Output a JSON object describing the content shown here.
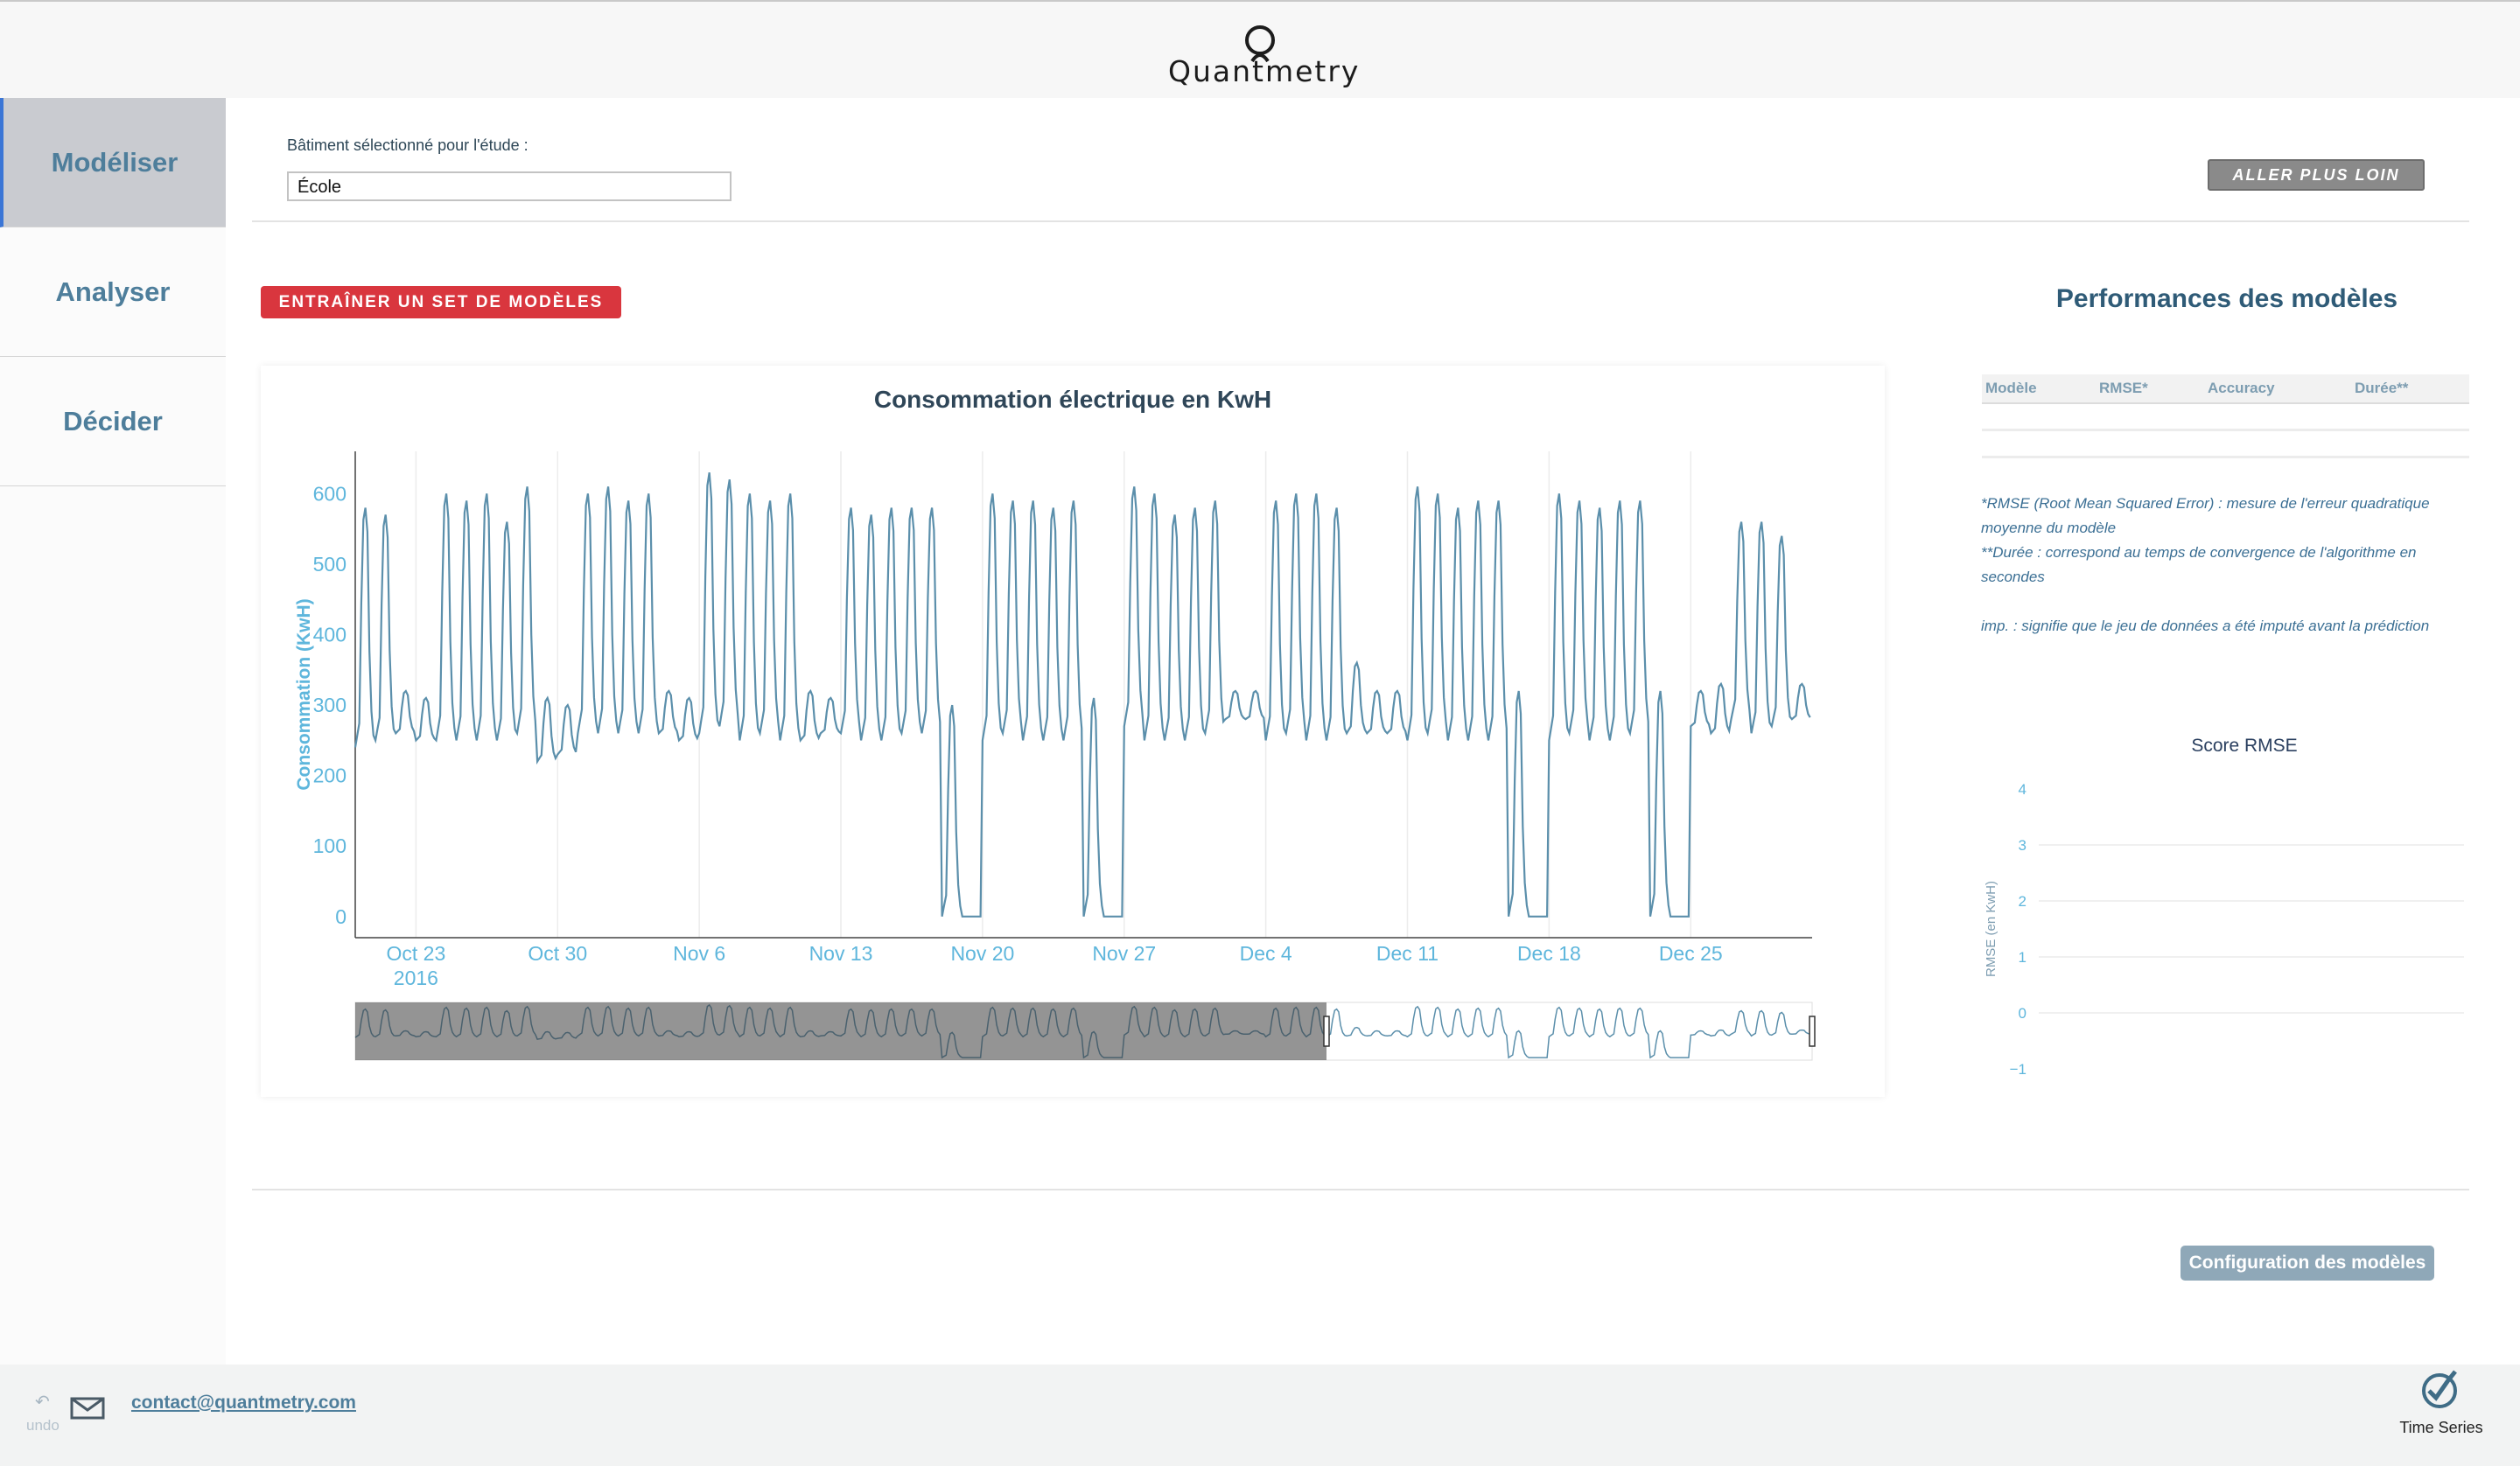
{
  "brand": {
    "name": "Quantmetry"
  },
  "sidebar": {
    "items": [
      {
        "label": "Modéliser",
        "active": true
      },
      {
        "label": "Analyser",
        "active": false
      },
      {
        "label": "Décider",
        "active": false
      }
    ]
  },
  "building": {
    "label": "Bâtiment sélectionné pour l'étude :",
    "value": "École"
  },
  "buttons": {
    "aller_plus_loin": "ALLER PLUS LOIN",
    "train": "ENTRAÎNER UN SET DE MODÈLES",
    "config": "Configuration des modèles"
  },
  "chart_data": {
    "type": "line",
    "title": "Consommation électrique en KwH",
    "ylabel": "Consommation (KwH)",
    "xlabel": "",
    "ylim": [
      -30,
      660
    ],
    "y_ticks": [
      0,
      100,
      200,
      300,
      400,
      500,
      600
    ],
    "x_tick_labels": [
      "Oct 23",
      "Oct 30",
      "Nov 6",
      "Nov 13",
      "Nov 20",
      "Nov 27",
      "Dec 4",
      "Dec 11",
      "Dec 18",
      "Dec 25"
    ],
    "x_tick_sublabel": "2016",
    "x_range": [
      "2016-10-20",
      "2016-12-31"
    ],
    "grid": true,
    "series": [
      {
        "color": "#5b8fab",
        "x": [
          "2016-10-20",
          "2016-10-21",
          "2016-10-22",
          "2016-10-23",
          "2016-10-24",
          "2016-10-25",
          "2016-10-26",
          "2016-10-27",
          "2016-10-28",
          "2016-10-29",
          "2016-10-30",
          "2016-10-31",
          "2016-11-01",
          "2016-11-02",
          "2016-11-03",
          "2016-11-04",
          "2016-11-05",
          "2016-11-06",
          "2016-11-07",
          "2016-11-08",
          "2016-11-09",
          "2016-11-10",
          "2016-11-11",
          "2016-11-12",
          "2016-11-13",
          "2016-11-14",
          "2016-11-15",
          "2016-11-16",
          "2016-11-17",
          "2016-11-18",
          "2016-11-19",
          "2016-11-20",
          "2016-11-21",
          "2016-11-22",
          "2016-11-23",
          "2016-11-24",
          "2016-11-25",
          "2016-11-26",
          "2016-11-27",
          "2016-11-28",
          "2016-11-29",
          "2016-11-30",
          "2016-12-01",
          "2016-12-02",
          "2016-12-03",
          "2016-12-04",
          "2016-12-05",
          "2016-12-06",
          "2016-12-07",
          "2016-12-08",
          "2016-12-09",
          "2016-12-10",
          "2016-12-11",
          "2016-12-12",
          "2016-12-13",
          "2016-12-14",
          "2016-12-15",
          "2016-12-16",
          "2016-12-17",
          "2016-12-18",
          "2016-12-19",
          "2016-12-20",
          "2016-12-21",
          "2016-12-22",
          "2016-12-23",
          "2016-12-24",
          "2016-12-25",
          "2016-12-26",
          "2016-12-27",
          "2016-12-28",
          "2016-12-29",
          "2016-12-30"
        ],
        "peak": [
          580,
          570,
          320,
          310,
          600,
          590,
          600,
          560,
          610,
          310,
          300,
          600,
          610,
          590,
          600,
          320,
          310,
          630,
          620,
          600,
          590,
          600,
          320,
          310,
          580,
          570,
          580,
          580,
          580,
          300,
          0,
          600,
          590,
          590,
          580,
          590,
          310,
          0,
          610,
          600,
          570,
          580,
          590,
          320,
          320,
          590,
          600,
          600,
          580,
          360,
          320,
          320,
          610,
          600,
          580,
          590,
          590,
          320,
          0,
          600,
          590,
          580,
          590,
          590,
          320,
          0,
          320,
          330,
          560,
          560,
          540,
          330
        ],
        "base": [
          240,
          250,
          260,
          250,
          250,
          250,
          250,
          250,
          260,
          220,
          230,
          260,
          260,
          260,
          260,
          260,
          250,
          260,
          270,
          250,
          260,
          250,
          250,
          260,
          260,
          250,
          250,
          260,
          260,
          0,
          0,
          250,
          260,
          250,
          250,
          250,
          0,
          0,
          270,
          250,
          250,
          250,
          260,
          280,
          280,
          250,
          260,
          250,
          250,
          260,
          260,
          260,
          250,
          260,
          250,
          250,
          250,
          0,
          0,
          250,
          260,
          250,
          250,
          260,
          0,
          0,
          270,
          260,
          280,
          260,
          270,
          280
        ]
      }
    ],
    "range_slider": {
      "selected_start": "2016-10-20",
      "selected_end": "2016-12-07"
    }
  },
  "performance": {
    "title": "Performances des modèles",
    "columns": [
      "Modèle",
      "RMSE*",
      "Accuracy",
      "Durée**"
    ],
    "notes": [
      "*RMSE (Root Mean Squared Error) : mesure de l'erreur quadratique moyenne du modèle",
      "**Durée : correspond au temps de convergence de l'algorithme en secondes",
      "imp. : signifie que le jeu de données a été imputé avant la prédiction"
    ]
  },
  "rmse_chart": {
    "type": "bar",
    "title": "Score RMSE",
    "ylabel": "RMSE (en KwH)",
    "ylim": [
      -1,
      4
    ],
    "y_ticks": [
      "4",
      "3",
      "2",
      "1",
      "0",
      "−1"
    ],
    "values": []
  },
  "footer": {
    "undo_label": "undo",
    "contact": "contact@quantmetry.com",
    "app_label": "Time Series"
  },
  "icons": {
    "logo": "quantmetry-logo-icon",
    "mail": "mail-icon",
    "undo": "undo-icon",
    "timeseries": "timeseries-logo-icon"
  },
  "colors": {
    "accent": "#4e7e9b",
    "train_button": "#d9363e",
    "series": "#5b8fab",
    "axis_text": "#5eb6dc"
  }
}
